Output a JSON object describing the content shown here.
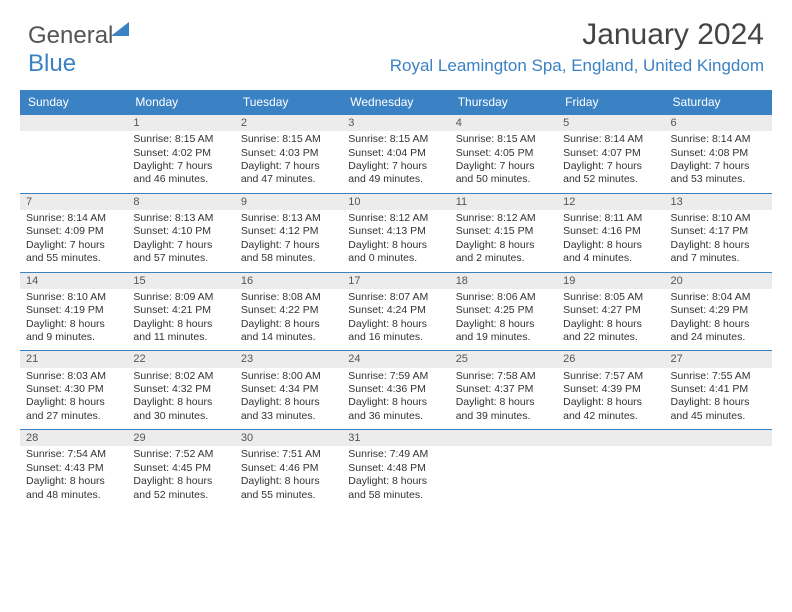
{
  "brand": {
    "part1": "General",
    "part2": "Blue"
  },
  "header": {
    "title": "January 2024",
    "location": "Royal Leamington Spa, England, United Kingdom"
  },
  "style": {
    "primary_color": "#3b82c4",
    "daynum_bg": "#ececec",
    "text_color": "#333333",
    "body_font_size": 10.5,
    "title_font_size": 30
  },
  "calendar": {
    "days_of_week": [
      "Sunday",
      "Monday",
      "Tuesday",
      "Wednesday",
      "Thursday",
      "Friday",
      "Saturday"
    ],
    "weeks": [
      [
        null,
        {
          "n": "1",
          "sr": "8:15 AM",
          "ss": "4:02 PM",
          "dl": "7 hours and 46 minutes."
        },
        {
          "n": "2",
          "sr": "8:15 AM",
          "ss": "4:03 PM",
          "dl": "7 hours and 47 minutes."
        },
        {
          "n": "3",
          "sr": "8:15 AM",
          "ss": "4:04 PM",
          "dl": "7 hours and 49 minutes."
        },
        {
          "n": "4",
          "sr": "8:15 AM",
          "ss": "4:05 PM",
          "dl": "7 hours and 50 minutes."
        },
        {
          "n": "5",
          "sr": "8:14 AM",
          "ss": "4:07 PM",
          "dl": "7 hours and 52 minutes."
        },
        {
          "n": "6",
          "sr": "8:14 AM",
          "ss": "4:08 PM",
          "dl": "7 hours and 53 minutes."
        }
      ],
      [
        {
          "n": "7",
          "sr": "8:14 AM",
          "ss": "4:09 PM",
          "dl": "7 hours and 55 minutes."
        },
        {
          "n": "8",
          "sr": "8:13 AM",
          "ss": "4:10 PM",
          "dl": "7 hours and 57 minutes."
        },
        {
          "n": "9",
          "sr": "8:13 AM",
          "ss": "4:12 PM",
          "dl": "7 hours and 58 minutes."
        },
        {
          "n": "10",
          "sr": "8:12 AM",
          "ss": "4:13 PM",
          "dl": "8 hours and 0 minutes."
        },
        {
          "n": "11",
          "sr": "8:12 AM",
          "ss": "4:15 PM",
          "dl": "8 hours and 2 minutes."
        },
        {
          "n": "12",
          "sr": "8:11 AM",
          "ss": "4:16 PM",
          "dl": "8 hours and 4 minutes."
        },
        {
          "n": "13",
          "sr": "8:10 AM",
          "ss": "4:17 PM",
          "dl": "8 hours and 7 minutes."
        }
      ],
      [
        {
          "n": "14",
          "sr": "8:10 AM",
          "ss": "4:19 PM",
          "dl": "8 hours and 9 minutes."
        },
        {
          "n": "15",
          "sr": "8:09 AM",
          "ss": "4:21 PM",
          "dl": "8 hours and 11 minutes."
        },
        {
          "n": "16",
          "sr": "8:08 AM",
          "ss": "4:22 PM",
          "dl": "8 hours and 14 minutes."
        },
        {
          "n": "17",
          "sr": "8:07 AM",
          "ss": "4:24 PM",
          "dl": "8 hours and 16 minutes."
        },
        {
          "n": "18",
          "sr": "8:06 AM",
          "ss": "4:25 PM",
          "dl": "8 hours and 19 minutes."
        },
        {
          "n": "19",
          "sr": "8:05 AM",
          "ss": "4:27 PM",
          "dl": "8 hours and 22 minutes."
        },
        {
          "n": "20",
          "sr": "8:04 AM",
          "ss": "4:29 PM",
          "dl": "8 hours and 24 minutes."
        }
      ],
      [
        {
          "n": "21",
          "sr": "8:03 AM",
          "ss": "4:30 PM",
          "dl": "8 hours and 27 minutes."
        },
        {
          "n": "22",
          "sr": "8:02 AM",
          "ss": "4:32 PM",
          "dl": "8 hours and 30 minutes."
        },
        {
          "n": "23",
          "sr": "8:00 AM",
          "ss": "4:34 PM",
          "dl": "8 hours and 33 minutes."
        },
        {
          "n": "24",
          "sr": "7:59 AM",
          "ss": "4:36 PM",
          "dl": "8 hours and 36 minutes."
        },
        {
          "n": "25",
          "sr": "7:58 AM",
          "ss": "4:37 PM",
          "dl": "8 hours and 39 minutes."
        },
        {
          "n": "26",
          "sr": "7:57 AM",
          "ss": "4:39 PM",
          "dl": "8 hours and 42 minutes."
        },
        {
          "n": "27",
          "sr": "7:55 AM",
          "ss": "4:41 PM",
          "dl": "8 hours and 45 minutes."
        }
      ],
      [
        {
          "n": "28",
          "sr": "7:54 AM",
          "ss": "4:43 PM",
          "dl": "8 hours and 48 minutes."
        },
        {
          "n": "29",
          "sr": "7:52 AM",
          "ss": "4:45 PM",
          "dl": "8 hours and 52 minutes."
        },
        {
          "n": "30",
          "sr": "7:51 AM",
          "ss": "4:46 PM",
          "dl": "8 hours and 55 minutes."
        },
        {
          "n": "31",
          "sr": "7:49 AM",
          "ss": "4:48 PM",
          "dl": "8 hours and 58 minutes."
        },
        null,
        null,
        null
      ]
    ]
  }
}
